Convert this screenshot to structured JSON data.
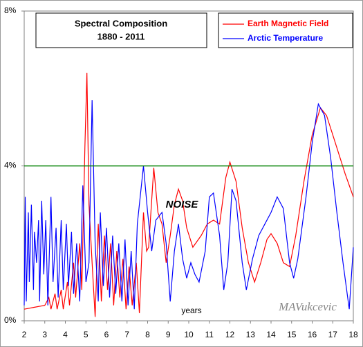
{
  "chart_data": {
    "type": "line",
    "title": "Spectral Composition",
    "subtitle": "1880 - 2011",
    "x_label": "years",
    "watermark": "MAVukcevic",
    "xlim": [
      2,
      18
    ],
    "xticks": [
      2,
      3,
      4,
      5,
      6,
      7,
      8,
      9,
      10,
      11,
      12,
      13,
      14,
      15,
      16,
      17,
      18
    ],
    "ylim": [
      0,
      8
    ],
    "yticks": [
      {
        "value": 0,
        "label": "0%"
      },
      {
        "value": 4,
        "label": "4%"
      },
      {
        "value": 8,
        "label": "8%"
      }
    ],
    "threshold": {
      "value": 4,
      "label": "NOISE",
      "color": "#008000"
    },
    "series": [
      {
        "name": "Earth Magnetic Field",
        "color": "#ff0000",
        "x": [
          2.0,
          2.5,
          3.0,
          3.2,
          3.3,
          3.5,
          3.6,
          3.8,
          3.9,
          4.1,
          4.2,
          4.4,
          4.5,
          4.7,
          4.8,
          4.95,
          5.05,
          5.15,
          5.3,
          5.45,
          5.6,
          5.75,
          5.9,
          6.05,
          6.2,
          6.35,
          6.5,
          6.65,
          6.8,
          6.95,
          7.1,
          7.25,
          7.45,
          7.6,
          7.8,
          7.95,
          8.05,
          8.3,
          8.5,
          8.7,
          8.9,
          9.1,
          9.3,
          9.5,
          9.7,
          9.9,
          10.2,
          10.6,
          10.9,
          11.2,
          11.5,
          11.8,
          12.0,
          12.3,
          12.6,
          12.9,
          13.2,
          13.5,
          13.8,
          14.0,
          14.3,
          14.6,
          14.9,
          15.2,
          15.6,
          16.0,
          16.4,
          16.7,
          17.0,
          17.3,
          17.6,
          18.0
        ],
        "values": [
          0.3,
          0.35,
          0.4,
          0.6,
          0.3,
          0.7,
          0.3,
          0.8,
          0.3,
          1.0,
          0.4,
          1.5,
          0.6,
          2.0,
          0.8,
          4.5,
          6.4,
          3.0,
          1.5,
          0.1,
          2.5,
          0.5,
          2.2,
          0.8,
          2.0,
          0.4,
          1.8,
          0.6,
          1.6,
          0.3,
          1.4,
          0.4,
          1.5,
          0.2,
          2.8,
          1.8,
          1.9,
          3.95,
          2.8,
          2.5,
          1.5,
          2.2,
          3.0,
          3.4,
          3.1,
          2.4,
          1.9,
          2.2,
          2.5,
          2.6,
          2.5,
          3.7,
          4.1,
          3.6,
          2.4,
          1.5,
          1.0,
          1.5,
          2.1,
          2.25,
          2.0,
          1.5,
          1.4,
          2.2,
          3.6,
          4.8,
          5.5,
          5.3,
          4.8,
          4.3,
          3.8,
          3.2
        ]
      },
      {
        "name": "Arctic Temperature",
        "color": "#0000ff",
        "x": [
          2.0,
          2.05,
          2.1,
          2.2,
          2.25,
          2.35,
          2.45,
          2.5,
          2.6,
          2.7,
          2.75,
          2.85,
          2.95,
          3.05,
          3.15,
          3.3,
          3.4,
          3.55,
          3.65,
          3.8,
          3.9,
          4.05,
          4.15,
          4.3,
          4.4,
          4.55,
          4.7,
          4.85,
          5.0,
          5.15,
          5.3,
          5.45,
          5.6,
          5.7,
          5.85,
          6.0,
          6.15,
          6.3,
          6.45,
          6.6,
          6.75,
          6.9,
          7.05,
          7.2,
          7.35,
          7.5,
          7.8,
          8.0,
          8.2,
          8.4,
          8.7,
          8.9,
          9.1,
          9.3,
          9.5,
          9.7,
          9.9,
          10.1,
          10.3,
          10.5,
          10.8,
          11.0,
          11.2,
          11.5,
          11.7,
          11.9,
          12.1,
          12.3,
          12.6,
          12.8,
          13.1,
          13.4,
          13.7,
          14.0,
          14.3,
          14.6,
          14.9,
          15.1,
          15.3,
          15.7,
          16.0,
          16.3,
          16.6,
          16.9,
          17.2,
          17.5,
          17.8,
          18.0
        ],
        "values": [
          0.4,
          3.2,
          0.5,
          2.8,
          1.0,
          3.0,
          0.8,
          2.3,
          1.5,
          2.6,
          0.5,
          3.1,
          1.2,
          2.6,
          0.4,
          3.2,
          1.0,
          2.4,
          0.6,
          2.6,
          0.8,
          2.5,
          0.9,
          2.3,
          0.7,
          2.0,
          0.5,
          3.5,
          1.0,
          1.5,
          5.7,
          2.0,
          0.5,
          2.8,
          0.9,
          2.4,
          0.6,
          2.2,
          0.7,
          2.0,
          0.5,
          2.1,
          0.4,
          1.8,
          0.3,
          2.5,
          4.0,
          2.8,
          1.8,
          2.6,
          2.8,
          2.0,
          0.5,
          1.8,
          2.5,
          1.6,
          1.1,
          1.5,
          1.2,
          1.0,
          1.8,
          3.2,
          3.3,
          2.2,
          0.8,
          1.5,
          3.4,
          3.1,
          1.5,
          0.8,
          1.6,
          2.2,
          2.5,
          2.8,
          3.2,
          2.9,
          1.5,
          1.1,
          1.6,
          3.2,
          4.6,
          5.6,
          5.3,
          4.2,
          2.8,
          1.5,
          0.3,
          1.9
        ]
      }
    ]
  }
}
